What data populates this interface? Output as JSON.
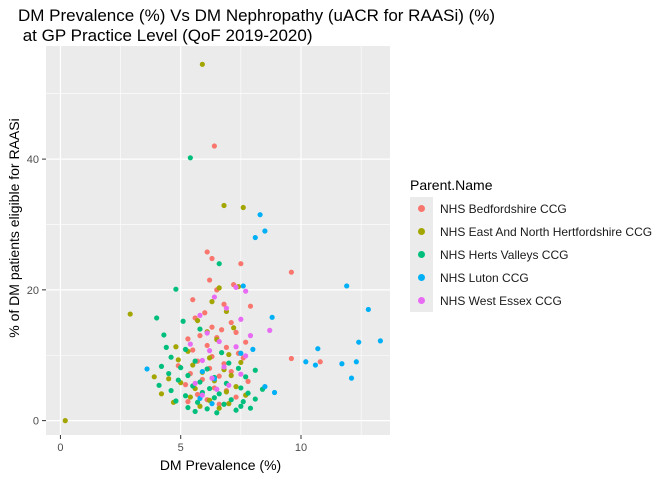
{
  "chart_data": {
    "type": "scatter",
    "title": "DM Prevalence (%) Vs DM Nephropathy (uACR for RAASi) (%)\n at GP Practice Level (QoF 2019-2020)",
    "xlabel": "DM Prevalence (%)",
    "ylabel": "% of DM patients eligible for RAASi",
    "xlim": [
      -0.6,
      13.7
    ],
    "ylim": [
      -2.2,
      57.3
    ],
    "x_ticks": [
      0,
      5,
      10
    ],
    "y_ticks": [
      0,
      20,
      40
    ],
    "grid": true,
    "legend_title": "Parent.Name",
    "legend_position": "right",
    "series": [
      {
        "name": "NHS Bedfordshire CCG",
        "color": "#F8766D",
        "points": [
          [
            6.4,
            42
          ],
          [
            6.1,
            25.8
          ],
          [
            6.3,
            24.8
          ],
          [
            7.5,
            24
          ],
          [
            9.6,
            22.7
          ],
          [
            6.2,
            21.5
          ],
          [
            7.2,
            20.8
          ],
          [
            6.5,
            20
          ],
          [
            5.5,
            18.5
          ],
          [
            6.8,
            17.8
          ],
          [
            7.9,
            17.5
          ],
          [
            6,
            16.5
          ],
          [
            5.6,
            15.7
          ],
          [
            7.1,
            15
          ],
          [
            6.3,
            14.3
          ],
          [
            6.7,
            13.9
          ],
          [
            7.3,
            13.5
          ],
          [
            5.8,
            13
          ],
          [
            6.5,
            12.7
          ],
          [
            5.3,
            12.5
          ],
          [
            7.7,
            12
          ],
          [
            6.1,
            11.5
          ],
          [
            6.9,
            11.2
          ],
          [
            5.5,
            10.8
          ],
          [
            7.4,
            10.3
          ],
          [
            6.3,
            9.8
          ],
          [
            7.6,
            9.6
          ],
          [
            9.6,
            9.5
          ],
          [
            10.8,
            9
          ],
          [
            5.7,
            9.1
          ],
          [
            6.8,
            8.7
          ],
          [
            4.9,
            8.4
          ],
          [
            6.2,
            8
          ],
          [
            7.1,
            7.5
          ],
          [
            5.4,
            7.2
          ],
          [
            6.6,
            6.8
          ],
          [
            5.9,
            6.3
          ],
          [
            7.8,
            6
          ],
          [
            5.2,
            5.5
          ],
          [
            6.4,
            5
          ],
          [
            6.9,
            4.6
          ],
          [
            5.7,
            4
          ],
          [
            7.3,
            3.6
          ],
          [
            6.1,
            3.2
          ],
          [
            5.3,
            2.9
          ],
          [
            6.6,
            2.5
          ]
        ]
      },
      {
        "name": "NHS East And North Hertfordshire CCG",
        "color": "#A3A500",
        "points": [
          [
            0.2,
            0
          ],
          [
            2.9,
            16.3
          ],
          [
            5.9,
            54.5
          ],
          [
            6.8,
            32.9
          ],
          [
            7.6,
            32.6
          ],
          [
            6.6,
            20.3
          ],
          [
            7.4,
            20.5
          ],
          [
            6.3,
            18.2
          ],
          [
            6.9,
            16.7
          ],
          [
            5.7,
            15.3
          ],
          [
            7.2,
            14.2
          ],
          [
            6.1,
            13.6
          ],
          [
            4.8,
            11.3
          ],
          [
            6.5,
            12.4
          ],
          [
            5.3,
            10.6
          ],
          [
            7,
            10.1
          ],
          [
            6.2,
            9.6
          ],
          [
            4.9,
            9.3
          ],
          [
            7.5,
            8.9
          ],
          [
            5.5,
            8.5
          ],
          [
            6.8,
            7.8
          ],
          [
            3.9,
            6.7
          ],
          [
            5.9,
            7.4
          ],
          [
            7.1,
            6.9
          ],
          [
            4.5,
            6.4
          ],
          [
            6.4,
            6.1
          ],
          [
            5,
            5.8
          ],
          [
            7.3,
            5.2
          ],
          [
            5.6,
            4.9
          ],
          [
            6.9,
            4.4
          ],
          [
            4.2,
            4.1
          ],
          [
            7.7,
            3.9
          ],
          [
            5.4,
            3.6
          ],
          [
            6.2,
            3.1
          ],
          [
            4.7,
            2.8
          ],
          [
            7,
            2.6
          ],
          [
            5.8,
            2.2
          ],
          [
            6.6,
            1.9
          ]
        ]
      },
      {
        "name": "NHS Herts Valleys CCG",
        "color": "#00BF7D",
        "points": [
          [
            5.4,
            40.2
          ],
          [
            4.8,
            20.1
          ],
          [
            6.6,
            24
          ],
          [
            4,
            15.7
          ],
          [
            5.1,
            15.2
          ],
          [
            4.3,
            13.1
          ],
          [
            5.8,
            14
          ],
          [
            4.4,
            11.2
          ],
          [
            5.2,
            10.9
          ],
          [
            6.7,
            10.4
          ],
          [
            4.6,
            9.7
          ],
          [
            5.6,
            9.1
          ],
          [
            7,
            8.8
          ],
          [
            4.2,
            8.3
          ],
          [
            5,
            8.1
          ],
          [
            6.1,
            7.9
          ],
          [
            7.4,
            8
          ],
          [
            8.1,
            7.7
          ],
          [
            4.5,
            7.2
          ],
          [
            5.3,
            6.9
          ],
          [
            6.4,
            6.6
          ],
          [
            7.7,
            6.7
          ],
          [
            4.9,
            6.2
          ],
          [
            5.8,
            5.9
          ],
          [
            6.9,
            5.7
          ],
          [
            4.1,
            5.4
          ],
          [
            5.5,
            5.3
          ],
          [
            6.2,
            4.9
          ],
          [
            7.5,
            5
          ],
          [
            8.4,
            4.8
          ],
          [
            4.6,
            4.6
          ],
          [
            5.9,
            4.3
          ],
          [
            6.6,
            4.1
          ],
          [
            7.8,
            4.2
          ],
          [
            5.2,
            3.8
          ],
          [
            6.4,
            3.5
          ],
          [
            7.1,
            3.2
          ],
          [
            4.8,
            3
          ],
          [
            5.7,
            2.8
          ],
          [
            6.8,
            2.5
          ],
          [
            7.5,
            2.2
          ],
          [
            5.3,
            2
          ],
          [
            6.1,
            1.8
          ],
          [
            7.3,
            1.6
          ],
          [
            5.6,
            1.4
          ],
          [
            6.5,
            1.2
          ],
          [
            7.6,
            2.9
          ],
          [
            8.1,
            3.3
          ],
          [
            7.9,
            1.9
          ]
        ]
      },
      {
        "name": "NHS Luton CCG",
        "color": "#00B0F6",
        "points": [
          [
            8.3,
            31.5
          ],
          [
            8.5,
            29
          ],
          [
            8.1,
            28
          ],
          [
            7.6,
            20.6
          ],
          [
            11.9,
            20.6
          ],
          [
            12.8,
            17
          ],
          [
            8.8,
            15.8
          ],
          [
            13.3,
            12.2
          ],
          [
            12.4,
            12
          ],
          [
            10.7,
            11
          ],
          [
            8,
            10.9
          ],
          [
            7.5,
            10.3
          ],
          [
            3.6,
            7.9
          ],
          [
            10.2,
            9
          ],
          [
            11.7,
            8.7
          ],
          [
            12.3,
            9
          ],
          [
            10.6,
            8.5
          ],
          [
            12.1,
            6.5
          ],
          [
            5.9,
            7.5
          ],
          [
            6.4,
            6.4
          ],
          [
            8.5,
            5.2
          ],
          [
            8.9,
            4.3
          ],
          [
            5.8,
            3.4
          ],
          [
            6.3,
            2.6
          ]
        ]
      },
      {
        "name": "NHS West Essex CCG",
        "color": "#E76BF3",
        "points": [
          [
            7.3,
            20.4
          ],
          [
            7.7,
            19.8
          ],
          [
            6.4,
            18.9
          ],
          [
            6.9,
            17.2
          ],
          [
            5.8,
            16.1
          ],
          [
            7.5,
            15.5
          ],
          [
            8.7,
            13.8
          ],
          [
            6.1,
            13.4
          ],
          [
            7.9,
            13
          ],
          [
            6.6,
            12.1
          ],
          [
            5.4,
            11.7
          ],
          [
            7.3,
            11.3
          ],
          [
            6.2,
            10.7
          ],
          [
            7.7,
            9.9
          ],
          [
            5.9,
            9.2
          ],
          [
            6.8,
            8.2
          ],
          [
            7.5,
            7.1
          ],
          [
            6.3,
            6.5
          ],
          [
            5.6,
            5.7
          ],
          [
            7,
            5.4
          ],
          [
            6.5,
            4.8
          ],
          [
            5.9,
            3.9
          ]
        ]
      }
    ]
  }
}
